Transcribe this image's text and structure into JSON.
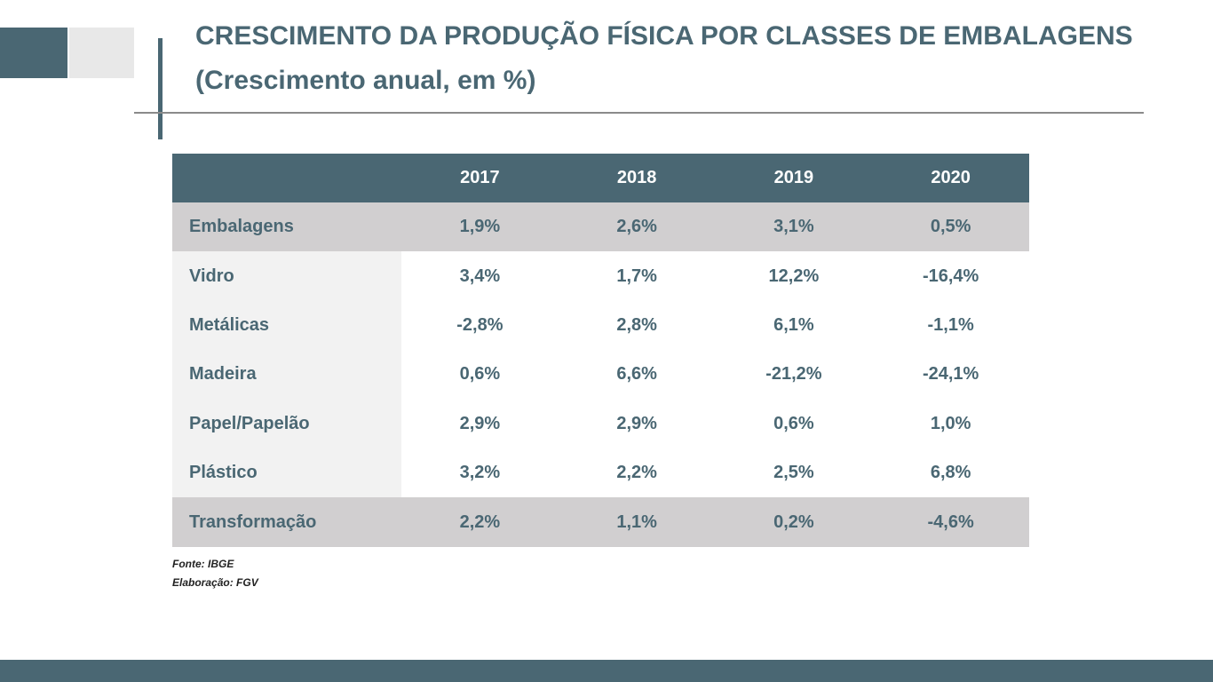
{
  "title": "CRESCIMENTO DA PRODUÇÃO FÍSICA POR CLASSES DE EMBALAGENS",
  "subtitle": "(Crescimento anual, em %)",
  "colors": {
    "accent": "#4a6773",
    "highlight_row": "#d1cfd0",
    "label_column": "#f2f2f2",
    "light_square": "#e8e8e8"
  },
  "chart_data": {
    "type": "table",
    "title": "CRESCIMENTO DA PRODUÇÃO FÍSICA POR CLASSES DE EMBALAGENS",
    "subtitle": "(Crescimento anual, em %)",
    "columns": [
      "",
      "2017",
      "2018",
      "2019",
      "2020"
    ],
    "rows": [
      {
        "label": "Embalagens",
        "highlight": true,
        "values": [
          "1,9%",
          "2,6%",
          "3,1%",
          "0,5%"
        ]
      },
      {
        "label": "Vidro",
        "highlight": false,
        "values": [
          "3,4%",
          "1,7%",
          "12,2%",
          "-16,4%"
        ]
      },
      {
        "label": "Metálicas",
        "highlight": false,
        "values": [
          "-2,8%",
          "2,8%",
          "6,1%",
          "-1,1%"
        ]
      },
      {
        "label": "Madeira",
        "highlight": false,
        "values": [
          "0,6%",
          "6,6%",
          "-21,2%",
          "-24,1%"
        ]
      },
      {
        "label": "Papel/Papelão",
        "highlight": false,
        "values": [
          "2,9%",
          "2,9%",
          "0,6%",
          "1,0%"
        ]
      },
      {
        "label": "Plástico",
        "highlight": false,
        "values": [
          "3,2%",
          "2,2%",
          "2,5%",
          "6,8%"
        ]
      },
      {
        "label": "Transformação",
        "highlight": true,
        "values": [
          "2,2%",
          "1,1%",
          "0,2%",
          "-4,6%"
        ]
      }
    ]
  },
  "source": {
    "fonte": "Fonte: IBGE",
    "elaboracao": "Elaboração: FGV"
  }
}
